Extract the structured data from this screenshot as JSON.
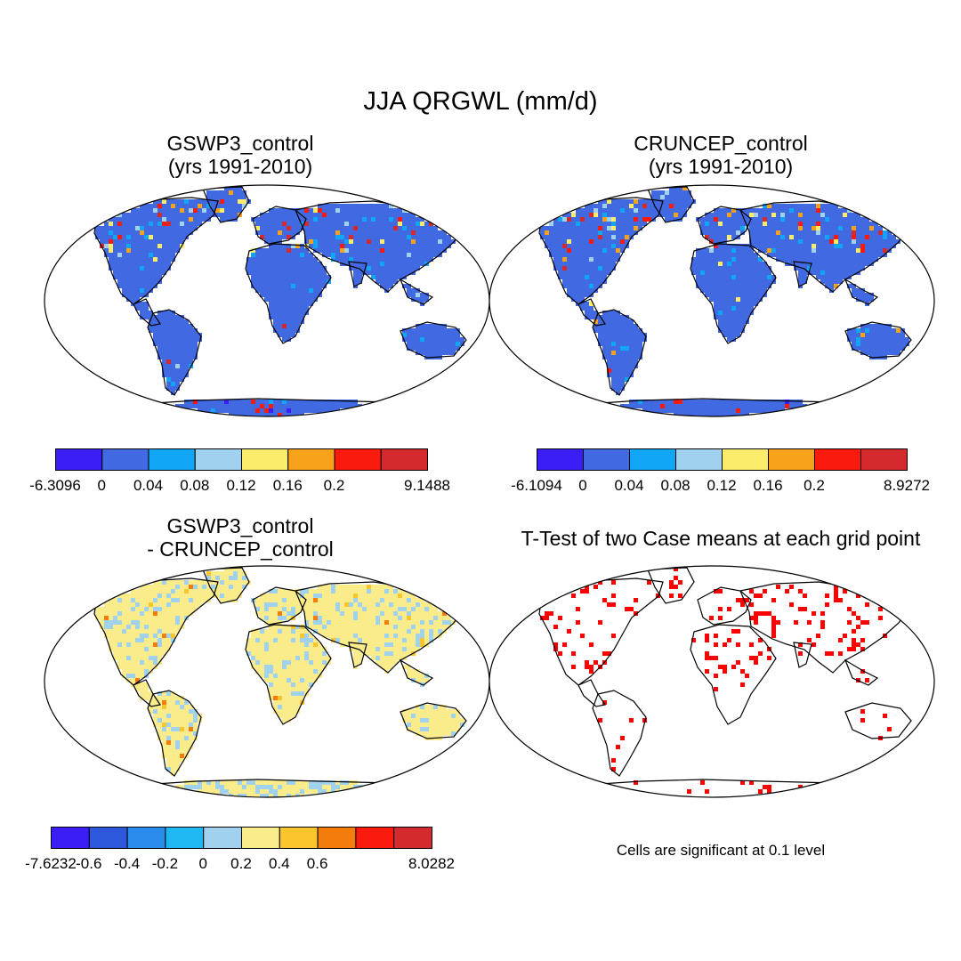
{
  "figure": {
    "title": "JJA QRGWL (mm/d)"
  },
  "chart_data": [
    {
      "type": "heatmap",
      "title_line1": "GSWP3_control",
      "title_line2": "(yrs 1991-2010)",
      "projection": "Robinson world map",
      "colorbar": {
        "colors": [
          "#3a1ef5",
          "#4169e1",
          "#10a5f5",
          "#a0d2ef",
          "#fbec6b",
          "#f6a21a",
          "#fb1b0e",
          "#d42a2e"
        ],
        "labels": [
          "-6.3096",
          "0",
          "0.04",
          "0.08",
          "0.12",
          "0.16",
          "0.2",
          "9.1488"
        ],
        "min": -6.3096,
        "max": 9.1488,
        "levels": [
          0,
          0.04,
          0.08,
          0.12,
          0.16,
          0.2
        ]
      },
      "dominant_class": 1,
      "hotspot_classes": [
        3,
        4,
        5,
        6,
        7
      ]
    },
    {
      "type": "heatmap",
      "title_line1": "CRUNCEP_control",
      "title_line2": "(yrs 1991-2010)",
      "projection": "Robinson world map",
      "colorbar": {
        "colors": [
          "#3a1ef5",
          "#4169e1",
          "#10a5f5",
          "#a0d2ef",
          "#fbec6b",
          "#f6a21a",
          "#fb1b0e",
          "#d42a2e"
        ],
        "labels": [
          "-6.1094",
          "0",
          "0.04",
          "0.08",
          "0.12",
          "0.16",
          "0.2",
          "8.9272"
        ],
        "min": -6.1094,
        "max": 8.9272,
        "levels": [
          0,
          0.04,
          0.08,
          0.12,
          0.16,
          0.2
        ]
      },
      "dominant_class": 1,
      "hotspot_classes": [
        3,
        4,
        5,
        6,
        7
      ]
    },
    {
      "type": "heatmap",
      "title_line1": "GSWP3_control",
      "title_line2": "- CRUNCEP_control",
      "projection": "Robinson world map",
      "colorbar": {
        "colors": [
          "#3a1ef5",
          "#2d58dc",
          "#2a8cec",
          "#1fb8f3",
          "#a0d2ef",
          "#fbec8b",
          "#f8c62c",
          "#f47c0c",
          "#fb1b0e",
          "#d42a2e"
        ],
        "labels": [
          "-7.6232",
          "-0.6",
          "-0.4",
          "-0.2",
          "0",
          "0.2",
          "0.4",
          "0.6",
          "8.0282"
        ],
        "min": -7.6232,
        "max": 8.0282,
        "levels": [
          -0.6,
          -0.4,
          -0.2,
          0,
          0.2,
          0.4,
          0.6
        ]
      },
      "dominant_class": 5,
      "hotspot_classes": [
        4,
        6,
        7,
        8
      ]
    },
    {
      "type": "heatmap",
      "title_line1": "T-Test of two Case means at each grid point",
      "title_line2": "",
      "projection": "Robinson world map",
      "significance_color": "#ff0000",
      "note": "Cells are significant at 0.1 level"
    }
  ],
  "map_style": {
    "ocean_color": "#ffffff",
    "frame_color": "#000000"
  }
}
